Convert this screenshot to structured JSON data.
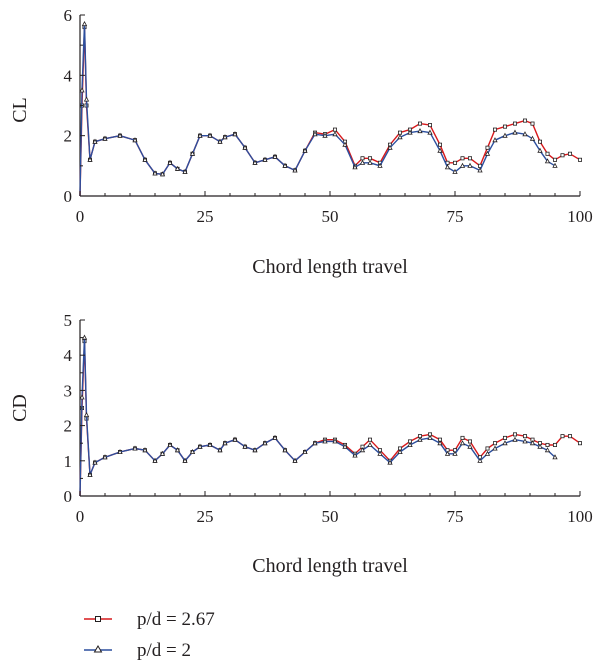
{
  "chart_data": [
    {
      "type": "line",
      "ylabel": "CL",
      "xlabel": "Chord length travel",
      "xlim": [
        0,
        100
      ],
      "ylim": [
        0,
        6
      ],
      "xticks": [
        "0",
        "25",
        "50",
        "75",
        "100"
      ],
      "yticks": [
        "0",
        "2",
        "4",
        "6"
      ],
      "series": [
        {
          "name": "p/d = 2.67",
          "color": "#d7191c",
          "marker": "square",
          "x": [
            0,
            0.4,
            0.9,
            1.3,
            2,
            3,
            5,
            8,
            11,
            13,
            15,
            16.5,
            18,
            19.5,
            21,
            22.5,
            24,
            26,
            28,
            29,
            31,
            33,
            35,
            37,
            39,
            41,
            43,
            45,
            47,
            49,
            51,
            53,
            55,
            56.5,
            58,
            60,
            62,
            64,
            66,
            68,
            70,
            72,
            73.5,
            75,
            76.5,
            78,
            80,
            81.5,
            83,
            85,
            87,
            89,
            90.5,
            92,
            93.5,
            95,
            96.5,
            98,
            100
          ],
          "y": [
            0,
            3.0,
            5.6,
            3.0,
            1.2,
            1.8,
            1.9,
            2.0,
            1.85,
            1.2,
            0.75,
            0.72,
            1.1,
            0.9,
            0.8,
            1.4,
            2.0,
            2.0,
            1.8,
            1.95,
            2.05,
            1.6,
            1.1,
            1.2,
            1.3,
            1.0,
            0.85,
            1.5,
            2.1,
            2.05,
            2.2,
            1.8,
            1.0,
            1.25,
            1.25,
            1.1,
            1.7,
            2.1,
            2.2,
            2.4,
            2.35,
            1.7,
            1.1,
            1.1,
            1.25,
            1.25,
            1.0,
            1.6,
            2.2,
            2.3,
            2.4,
            2.5,
            2.4,
            1.8,
            1.4,
            1.2,
            1.35,
            1.4,
            1.2
          ]
        },
        {
          "name": "p/d = 2",
          "color": "#2c4f9e",
          "marker": "triangle",
          "x": [
            0,
            0.4,
            0.9,
            1.3,
            2,
            3,
            5,
            8,
            11,
            13,
            15,
            16.5,
            18,
            19.5,
            21,
            22.5,
            24,
            26,
            28,
            29,
            31,
            33,
            35,
            37,
            39,
            41,
            43,
            45,
            47,
            49,
            51,
            53,
            55,
            56.5,
            58,
            60,
            62,
            64,
            66,
            68,
            70,
            72,
            73.5,
            75,
            76.5,
            78,
            80,
            81.5,
            83,
            85,
            87,
            89,
            90.5,
            92,
            93.5,
            95
          ],
          "y": [
            0,
            3.5,
            5.7,
            3.2,
            1.2,
            1.8,
            1.9,
            2.0,
            1.85,
            1.2,
            0.75,
            0.72,
            1.1,
            0.9,
            0.8,
            1.4,
            2.0,
            2.0,
            1.8,
            1.95,
            2.05,
            1.6,
            1.1,
            1.2,
            1.3,
            1.0,
            0.85,
            1.5,
            2.05,
            2.0,
            2.05,
            1.7,
            0.95,
            1.1,
            1.1,
            1.0,
            1.6,
            1.95,
            2.1,
            2.15,
            2.1,
            1.5,
            0.95,
            0.8,
            1.0,
            1.0,
            0.85,
            1.4,
            1.85,
            2.0,
            2.1,
            2.05,
            1.9,
            1.5,
            1.15,
            1.0
          ]
        }
      ]
    },
    {
      "type": "line",
      "ylabel": "CD",
      "xlabel": "Chord length travel",
      "xlim": [
        0,
        100
      ],
      "ylim": [
        0,
        5
      ],
      "xticks": [
        "0",
        "25",
        "50",
        "75",
        "100"
      ],
      "yticks": [
        "0",
        "1",
        "2",
        "3",
        "4",
        "5"
      ],
      "series": [
        {
          "name": "p/d = 2.67",
          "color": "#d7191c",
          "marker": "square",
          "x": [
            0,
            0.4,
            0.9,
            1.3,
            2,
            3,
            5,
            8,
            11,
            13,
            15,
            16.5,
            18,
            19.5,
            21,
            22.5,
            24,
            26,
            28,
            29,
            31,
            33,
            35,
            37,
            39,
            41,
            43,
            45,
            47,
            49,
            51,
            53,
            55,
            56.5,
            58,
            60,
            62,
            64,
            66,
            68,
            70,
            72,
            73.5,
            75,
            76.5,
            78,
            80,
            81.5,
            83,
            85,
            87,
            89,
            90.5,
            92,
            93.5,
            95,
            96.5,
            98,
            100
          ],
          "y": [
            0,
            2.5,
            4.4,
            2.2,
            0.6,
            0.95,
            1.1,
            1.25,
            1.35,
            1.3,
            1.0,
            1.2,
            1.45,
            1.3,
            1.0,
            1.25,
            1.4,
            1.45,
            1.3,
            1.5,
            1.6,
            1.4,
            1.3,
            1.5,
            1.65,
            1.3,
            1.0,
            1.25,
            1.5,
            1.6,
            1.6,
            1.45,
            1.2,
            1.4,
            1.6,
            1.3,
            1.0,
            1.35,
            1.55,
            1.7,
            1.75,
            1.6,
            1.3,
            1.3,
            1.65,
            1.55,
            1.1,
            1.35,
            1.5,
            1.65,
            1.75,
            1.7,
            1.6,
            1.5,
            1.45,
            1.45,
            1.7,
            1.7,
            1.5
          ]
        },
        {
          "name": "p/d = 2",
          "color": "#2c4f9e",
          "marker": "triangle",
          "x": [
            0,
            0.4,
            0.9,
            1.3,
            2,
            3,
            5,
            8,
            11,
            13,
            15,
            16.5,
            18,
            19.5,
            21,
            22.5,
            24,
            26,
            28,
            29,
            31,
            33,
            35,
            37,
            39,
            41,
            43,
            45,
            47,
            49,
            51,
            53,
            55,
            56.5,
            58,
            60,
            62,
            64,
            66,
            68,
            70,
            72,
            73.5,
            75,
            76.5,
            78,
            80,
            81.5,
            83,
            85,
            87,
            89,
            90.5,
            92,
            93.5,
            95
          ],
          "y": [
            0,
            2.8,
            4.5,
            2.3,
            0.6,
            0.95,
            1.1,
            1.25,
            1.35,
            1.3,
            1.0,
            1.2,
            1.45,
            1.3,
            1.0,
            1.25,
            1.4,
            1.45,
            1.3,
            1.5,
            1.6,
            1.4,
            1.3,
            1.5,
            1.65,
            1.3,
            1.0,
            1.25,
            1.5,
            1.55,
            1.55,
            1.4,
            1.15,
            1.3,
            1.45,
            1.2,
            0.95,
            1.25,
            1.45,
            1.6,
            1.65,
            1.5,
            1.2,
            1.2,
            1.5,
            1.4,
            1.0,
            1.2,
            1.35,
            1.5,
            1.6,
            1.55,
            1.5,
            1.4,
            1.3,
            1.1
          ]
        }
      ]
    }
  ],
  "legend": [
    {
      "label": "p/d = 2.67",
      "color": "#d7191c",
      "marker": "square"
    },
    {
      "label": "p/d = 2",
      "color": "#2c4f9e",
      "marker": "triangle"
    }
  ]
}
